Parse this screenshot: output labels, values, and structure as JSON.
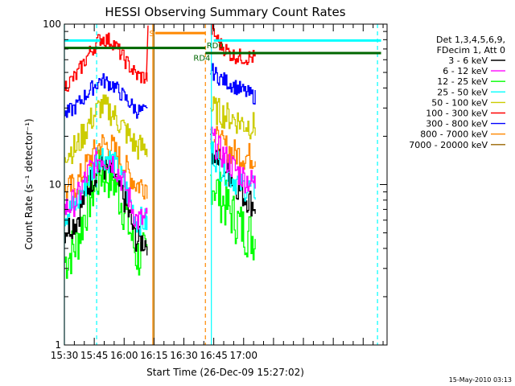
{
  "chart_data": {
    "type": "line",
    "title": "HESSI Observing Summary Count Rates",
    "xlabel": "Start Time (26-Dec-09 15:27:02)",
    "ylabel": "Count Rate (s⁻¹ detector⁻¹)",
    "x_range_minutes": [
      15.5,
      18.2
    ],
    "ylim": [
      1,
      100
    ],
    "yscale": "log",
    "x_ticks": [
      "15:30",
      "15:45",
      "16:00",
      "16:15",
      "16:30",
      "16:45",
      "17:00"
    ],
    "y_ticks": [
      "1",
      "10",
      "100"
    ],
    "legend_header": [
      "Det 1,3,4,5,6,9,",
      "FDecim 1, Att 0"
    ],
    "legend_position": "right",
    "series": [
      {
        "name": "3 - 6 keV",
        "color": "#000000",
        "x": [
          15.5,
          15.6,
          15.7,
          15.8,
          15.9,
          16.0,
          16.1,
          16.2,
          16.72,
          16.8,
          16.9,
          17.0,
          17.1
        ],
        "values": [
          5.2,
          6,
          10,
          13,
          12,
          8,
          4.5,
          4.4,
          17,
          14,
          11,
          8.5,
          7.3
        ]
      },
      {
        "name": "6 - 12 keV",
        "color": "#ff00ff",
        "x": [
          15.5,
          15.6,
          15.7,
          15.8,
          15.9,
          16.0,
          16.1,
          16.2,
          16.72,
          16.8,
          16.9,
          17.0,
          17.1
        ],
        "values": [
          7,
          8,
          12,
          15,
          14,
          10,
          6,
          6,
          20,
          16,
          13,
          11,
          10
        ]
      },
      {
        "name": "12 - 25 keV",
        "color": "#00ff00",
        "x": [
          15.5,
          15.6,
          15.7,
          15.8,
          15.9,
          16.0,
          16.1,
          16.2,
          16.72,
          16.8,
          16.9,
          17.0,
          17.1
        ],
        "values": [
          3.3,
          4.3,
          8,
          12,
          11,
          7,
          3.6,
          3.5,
          11,
          8.5,
          6.5,
          5.2,
          4.6
        ]
      },
      {
        "name": "25 - 50 keV",
        "color": "#00ffff",
        "x": [
          15.5,
          15.6,
          15.7,
          15.8,
          15.9,
          16.0,
          16.1,
          16.2,
          16.72,
          16.8,
          16.9,
          17.0,
          17.1
        ],
        "values": [
          6.5,
          7.5,
          11,
          15.5,
          14,
          10,
          6,
          5.8,
          17,
          13,
          11,
          9.7,
          9.2
        ]
      },
      {
        "name": "50 - 100 keV",
        "color": "#cccc00",
        "x": [
          15.5,
          15.6,
          15.7,
          15.8,
          15.9,
          16.0,
          16.1,
          16.2,
          16.72,
          16.8,
          16.9,
          17.0,
          17.1
        ],
        "values": [
          16,
          17,
          24,
          31,
          28,
          22,
          17,
          17,
          30,
          28,
          26,
          24,
          23
        ]
      },
      {
        "name": "100 - 300 keV",
        "color": "#ff0000",
        "x": [
          15.5,
          15.6,
          15.7,
          15.8,
          15.9,
          16.0,
          16.1,
          16.2,
          16.72,
          16.8,
          16.9,
          17.0,
          17.1
        ],
        "values": [
          41,
          48,
          65,
          82,
          78,
          60,
          48,
          46,
          95,
          75,
          64,
          62,
          62
        ]
      },
      {
        "name": "300 - 800 keV",
        "color": "#0000ff",
        "x": [
          15.5,
          15.6,
          15.7,
          15.8,
          15.9,
          16.0,
          16.1,
          16.2,
          16.72,
          16.8,
          16.9,
          17.0,
          17.1
        ],
        "values": [
          27,
          31,
          38,
          45,
          42,
          35,
          29,
          28,
          52,
          46,
          42,
          38,
          35
        ]
      },
      {
        "name": "800 - 7000 keV",
        "color": "#ff8800",
        "x": [
          15.5,
          15.6,
          15.7,
          15.8,
          15.9,
          16.0,
          16.1,
          16.2,
          16.72,
          16.8,
          16.9,
          17.0,
          17.1
        ],
        "values": [
          9,
          10,
          14,
          18,
          17,
          13,
          10,
          10,
          21,
          18,
          16,
          15,
          15
        ]
      },
      {
        "name": "7000 - 20000 keV",
        "color": "#996600",
        "x": [],
        "values": []
      }
    ],
    "annotations": [
      {
        "text": "S",
        "color": "#ff8800"
      },
      {
        "text": "RD4",
        "color": "#006600"
      },
      {
        "text": "RD0",
        "color": "#006600"
      }
    ]
  },
  "footer": {
    "timestamp": "15-May-2010 03:13"
  }
}
